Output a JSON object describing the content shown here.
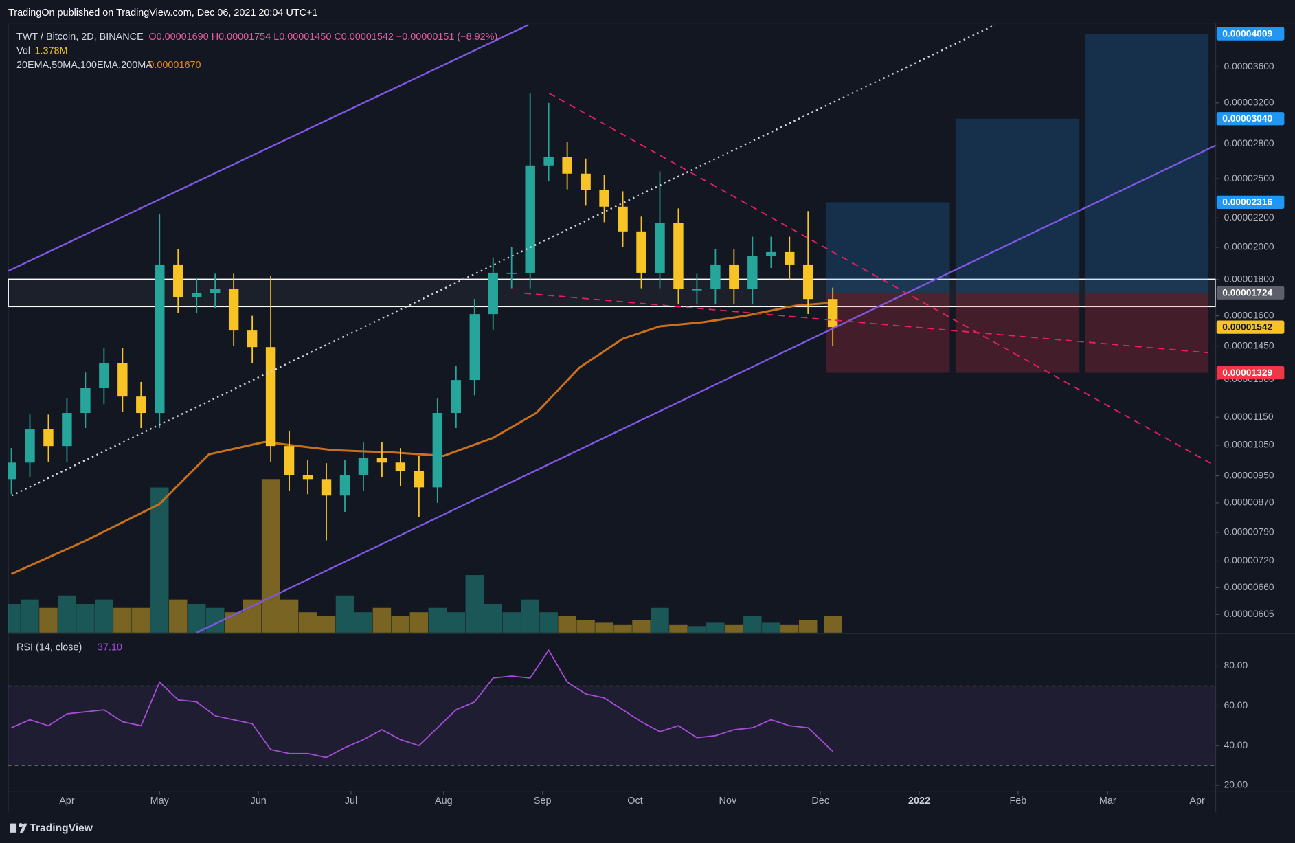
{
  "header": {
    "published": "TradingOn published on TradingView.com, Dec 06, 2021 20:04 UTC+1",
    "brand": "TradingView"
  },
  "chart_data": {
    "type": "candlestick",
    "legend": {
      "symbol": "TWT / Bitcoin, 2D, BINANCE",
      "ohlc": "O0.00001690 H0.00001754 L0.00001450 C0.00001542 −0.00000151 (−8.92%)",
      "volume": "Vol",
      "volume_value": "1.378M",
      "indicators": "20EMA,50MA,100EMA,200MA",
      "indicator_value": "0.00001670"
    },
    "x": [
      0,
      3,
      6,
      9,
      12,
      15,
      18,
      21,
      24,
      27,
      30,
      33,
      36,
      39,
      42,
      45,
      48,
      51,
      54,
      57,
      60,
      63,
      66,
      69,
      72,
      75,
      78,
      81,
      84,
      87,
      90,
      93,
      96,
      99,
      102,
      105,
      108,
      111,
      114,
      117,
      120,
      123,
      126,
      129,
      133
    ],
    "open": [
      9.4e-06,
      9.92e-06,
      1.105e-05,
      1.047e-05,
      1.166e-05,
      1.264e-05,
      1.37e-05,
      1.23e-05,
      1.166e-05,
      1.891e-05,
      1.699e-05,
      1.722e-05,
      1.745e-05,
      1.525e-05,
      1.445e-05,
      1.047e-05,
      9.53e-06,
      9.4e-06,
      8.91e-06,
      9.53e-06,
      1.006e-05,
      9.92e-06,
      9.66e-06,
      9.15e-06,
      1.166e-05,
      1.298e-05,
      1.609e-05,
      1.841e-05,
      1.841e-05,
      2.611e-05,
      2.683e-05,
      2.542e-05,
      2.409e-05,
      2.283e-05,
      2.106e-05,
      1.841e-05,
      2.163e-05,
      1.745e-05,
      1.745e-05,
      1.891e-05,
      1.745e-05,
      1.943e-05,
      1.969e-05,
      1.891e-05,
      1.69e-05
    ],
    "high": [
      1.04e-05,
      1.16e-05,
      1.16e-05,
      1.225e-05,
      1.33e-05,
      1.44e-05,
      1.44e-05,
      1.29e-05,
      2.23e-05,
      1.99e-05,
      1.81e-05,
      1.835e-05,
      1.835e-05,
      1.6e-05,
      1.82e-05,
      1.1e-05,
      1e-05,
      9.9e-06,
      1e-05,
      1.06e-05,
      1.06e-05,
      1.04e-05,
      1.015e-05,
      1.225e-05,
      1.36e-05,
      1.69e-05,
      1.935e-05,
      2e-05,
      3.3e-05,
      3.2e-05,
      2.82e-05,
      2.67e-05,
      2.53e-05,
      2.4e-05,
      2.21e-05,
      2.56e-05,
      2.27e-05,
      1.835e-05,
      1.99e-05,
      1.99e-05,
      2.07e-05,
      2.07e-05,
      2.07e-05,
      2.25e-05,
      1.754e-05
    ],
    "low": [
      8.95e-06,
      9.45e-06,
      9.95e-06,
      9.95e-06,
      1.11e-05,
      1.2e-05,
      1.17e-05,
      1.11e-05,
      1.11e-05,
      1.615e-05,
      1.615e-05,
      1.64e-05,
      1.45e-05,
      1.37e-05,
      9.95e-06,
      9.05e-06,
      8.95e-06,
      7.7e-06,
      8.45e-06,
      9.05e-06,
      9.45e-06,
      9.2e-06,
      8.3e-06,
      8.7e-06,
      1.11e-05,
      1.235e-05,
      1.53e-05,
      1.75e-05,
      1.75e-05,
      2.48e-05,
      2.415e-05,
      2.29e-05,
      2.17e-05,
      2e-05,
      1.75e-05,
      1.75e-05,
      1.66e-05,
      1.66e-05,
      1.66e-05,
      1.66e-05,
      1.66e-05,
      1.87e-05,
      1.8e-05,
      1.61e-05,
      1.45e-05
    ],
    "close": [
      9.92e-06,
      1.105e-05,
      1.047e-05,
      1.166e-05,
      1.264e-05,
      1.37e-05,
      1.23e-05,
      1.166e-05,
      1.891e-05,
      1.699e-05,
      1.722e-05,
      1.745e-05,
      1.525e-05,
      1.445e-05,
      1.047e-05,
      9.53e-06,
      9.4e-06,
      8.91e-06,
      9.53e-06,
      1.006e-05,
      9.92e-06,
      9.66e-06,
      9.15e-06,
      1.166e-05,
      1.298e-05,
      1.609e-05,
      1.841e-05,
      1.841e-05,
      2.611e-05,
      2.683e-05,
      2.542e-05,
      2.409e-05,
      2.283e-05,
      2.106e-05,
      1.841e-05,
      2.163e-05,
      1.745e-05,
      1.745e-05,
      1.891e-05,
      1.745e-05,
      1.943e-05,
      1.969e-05,
      1.891e-05,
      1.69e-05,
      1.542e-05
    ],
    "up_color": "#26a69a",
    "down_color": "#f7c325",
    "xlim": [
      -0.5,
      195
    ],
    "xticks": [
      {
        "value": 9,
        "label": "Apr"
      },
      {
        "value": 24,
        "label": "May"
      },
      {
        "value": 40,
        "label": "Jun"
      },
      {
        "value": 55,
        "label": "Jul"
      },
      {
        "value": 70,
        "label": "Aug"
      },
      {
        "value": 86,
        "label": "Sep"
      },
      {
        "value": 101,
        "label": "Oct"
      },
      {
        "value": 116,
        "label": "Nov"
      },
      {
        "value": 131,
        "label": "Dec"
      },
      {
        "value": 147,
        "label": "2022"
      },
      {
        "value": 163,
        "label": "Feb"
      },
      {
        "value": 177.5,
        "label": "Mar"
      },
      {
        "value": 192,
        "label": "Apr"
      }
    ],
    "ylim": [
      5.7e-06,
      4.15e-05
    ],
    "log_scale": true,
    "grid": false,
    "yticks": [
      {
        "value": 3.6e-05,
        "label": "0.00003600"
      },
      {
        "value": 3.2e-05,
        "label": "0.00003200"
      },
      {
        "value": 2.8e-05,
        "label": "0.00002800"
      },
      {
        "value": 2.5e-05,
        "label": "0.00002500"
      },
      {
        "value": 2.2e-05,
        "label": "0.00002200"
      },
      {
        "value": 2e-05,
        "label": "0.00002000"
      },
      {
        "value": 1.8e-05,
        "label": "0.00001800"
      },
      {
        "value": 1.6e-05,
        "label": "0.00001600"
      },
      {
        "value": 1.45e-05,
        "label": "0.00001450"
      },
      {
        "value": 1.3e-05,
        "label": "0.00001300"
      },
      {
        "value": 1.15e-05,
        "label": "0.00001150"
      },
      {
        "value": 1.05e-05,
        "label": "0.00001050"
      },
      {
        "value": 9.5e-06,
        "label": "0.00000950"
      },
      {
        "value": 8.7e-06,
        "label": "0.00000870"
      },
      {
        "value": 7.9e-06,
        "label": "0.00000790"
      },
      {
        "value": 7.2e-06,
        "label": "0.00000720"
      },
      {
        "value": 6.6e-06,
        "label": "0.00000660"
      },
      {
        "value": 6.05e-06,
        "label": "0.00000605"
      }
    ],
    "moving_average": {
      "color": "#c9701c",
      "x": [
        0,
        12,
        24,
        32,
        41,
        52,
        62,
        70,
        78,
        85,
        92,
        99,
        105,
        112,
        119,
        127,
        133
      ],
      "values": [
        6.9e-06,
        7.69e-06,
        8.67e-06,
        1.019e-05,
        1.061e-05,
        1.033e-05,
        1.025e-05,
        1.014e-05,
        1.075e-05,
        1.166e-05,
        1.352e-05,
        1.485e-05,
        1.546e-05,
        1.567e-05,
        1.601e-05,
        1.654e-05,
        1.67e-05
      ]
    },
    "volume": {
      "values": [
        2400000,
        2760000,
        2070000,
        3100000,
        2400000,
        2760000,
        2070000,
        2070000,
        12100000,
        2760000,
        2400000,
        2070000,
        1700000,
        2760000,
        12800000,
        2760000,
        1700000,
        1380000,
        3100000,
        1700000,
        2070000,
        1380000,
        1700000,
        2070000,
        1700000,
        4800000,
        2400000,
        1700000,
        2760000,
        1700000,
        1380000,
        1030000,
        830000,
        690000,
        1030000,
        2070000,
        690000,
        550000,
        830000,
        690000,
        1380000,
        830000,
        690000,
        1030000,
        1378000
      ]
    },
    "price_labels": [
      {
        "value": 4.009e-05,
        "label": "0.00004009",
        "color": "#2196f3",
        "text_color": "#ffffff"
      },
      {
        "value": 3.04e-05,
        "label": "0.00003040",
        "color": "#2196f3",
        "text_color": "#ffffff"
      },
      {
        "value": 2.316e-05,
        "label": "0.00002316",
        "color": "#2196f3",
        "text_color": "#ffffff"
      },
      {
        "value": 1.724e-05,
        "label": "0.00001724",
        "color": "#5d606b",
        "text_color": "#ffffff"
      },
      {
        "value": 1.542e-05,
        "label": "0.00001542",
        "color": "#f7c325",
        "text_color": "#131722"
      },
      {
        "value": 1.329e-05,
        "label": "0.00001329",
        "color": "#f23645",
        "text_color": "#ffffff"
      }
    ],
    "zone": [
      1.649e-05,
      1.802e-05
    ],
    "rsi": {
      "title": "RSI (14, close)",
      "value_label": "37.10",
      "color": "#a64dd6",
      "values": [
        49,
        53,
        50,
        56,
        57,
        58,
        52,
        50,
        72,
        63,
        62,
        55,
        53,
        51,
        38,
        36,
        36,
        34,
        39,
        43,
        48,
        43,
        40,
        49,
        58,
        62,
        74,
        75,
        74,
        88,
        72,
        66,
        64,
        58,
        52,
        47,
        50,
        44,
        45,
        48,
        49,
        53,
        50,
        49,
        37.1
      ],
      "ylim": [
        17,
        96
      ],
      "yticks": [
        {
          "value": 80,
          "label": "80.00"
        },
        {
          "value": 60,
          "label": "60.00"
        },
        {
          "value": 40,
          "label": "40.00"
        },
        {
          "value": 20,
          "label": "20.00"
        }
      ],
      "bands": [
        30,
        70
      ]
    }
  }
}
